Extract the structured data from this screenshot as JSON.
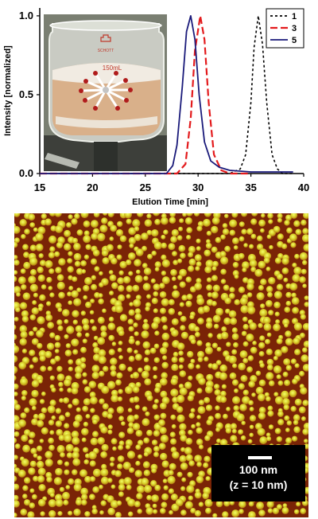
{
  "chart_data": {
    "type": "line",
    "title": "",
    "xlabel": "Elution Time [min]",
    "ylabel": "Intensity [normalized]",
    "xlim": [
      15,
      40
    ],
    "ylim": [
      0,
      1.05
    ],
    "xticks": [
      15,
      20,
      25,
      30,
      35,
      40
    ],
    "yticks": [
      0.0,
      0.5,
      1.0
    ],
    "xtick_labels": [
      "15",
      "20",
      "25",
      "30",
      "35",
      "40"
    ],
    "ytick_labels": [
      "0.0",
      "0.5",
      "1.0"
    ],
    "grid": false,
    "legend_position": "top-right",
    "series": [
      {
        "name": "1",
        "color": "#000000",
        "style": "dotted",
        "peak_x": 35.7,
        "peak_y": 1.0,
        "x": [
          15,
          33,
          34,
          34.5,
          35,
          35.3,
          35.7,
          36.1,
          36.5,
          37,
          37.5,
          38,
          39
        ],
        "y": [
          0,
          0.0,
          0.03,
          0.12,
          0.45,
          0.8,
          1.0,
          0.82,
          0.45,
          0.12,
          0.03,
          0.0,
          0.0
        ]
      },
      {
        "name": "3",
        "color": "#e31a1c",
        "style": "dashed",
        "peak_x": 30.2,
        "peak_y": 1.0,
        "x": [
          15,
          28,
          28.8,
          29.3,
          29.7,
          30.2,
          30.6,
          31.0,
          31.5,
          32.2,
          33,
          35
        ],
        "y": [
          0,
          0.0,
          0.06,
          0.35,
          0.78,
          1.0,
          0.85,
          0.45,
          0.12,
          0.02,
          0.0,
          0.0
        ]
      },
      {
        "name": "5",
        "color": "#1a1a7a",
        "style": "solid",
        "peak_x": 29.3,
        "peak_y": 1.0,
        "x": [
          15,
          27,
          27.6,
          28,
          28.5,
          28.9,
          29.3,
          29.7,
          30.1,
          30.6,
          31.2,
          32,
          33,
          35,
          39
        ],
        "y": [
          0,
          0.0,
          0.05,
          0.18,
          0.55,
          0.9,
          1.0,
          0.85,
          0.5,
          0.2,
          0.08,
          0.04,
          0.02,
          0.01,
          0.01
        ]
      }
    ]
  },
  "inset_photo": {
    "flask_marking": "150mL",
    "brand_marking": "SCHOTT"
  },
  "afm_image": {
    "scalebar_label": "100 nm",
    "z_range_label": "(z = 10 nm)"
  }
}
